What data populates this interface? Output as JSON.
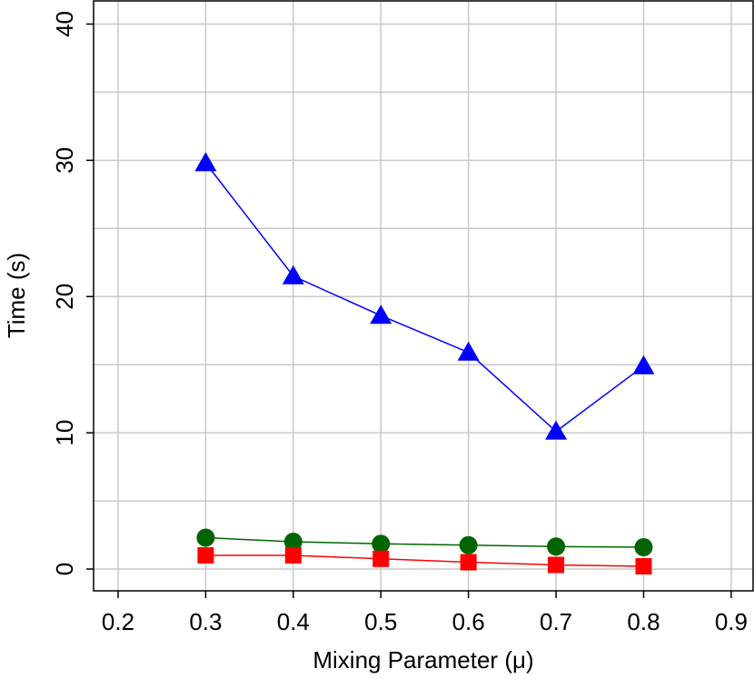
{
  "chart_data": {
    "type": "line",
    "x_label": "Mixing Parameter (μ)",
    "y_label": "Time (s)",
    "x": [
      0.3,
      0.4,
      0.5,
      0.6,
      0.7,
      0.8
    ],
    "series": [
      {
        "color": "#0000ff",
        "marker": "triangle",
        "values": [
          29.8,
          21.5,
          18.6,
          15.9,
          10.1,
          14.9
        ]
      },
      {
        "color": "#006400",
        "marker": "circle",
        "values": [
          2.3,
          2.0,
          1.85,
          1.75,
          1.65,
          1.6
        ]
      },
      {
        "color": "#ff0000",
        "marker": "square",
        "values": [
          1.0,
          1.0,
          0.75,
          0.5,
          0.3,
          0.2
        ]
      }
    ],
    "xlim": [
      0.172,
      0.925
    ],
    "ylim": [
      -1.6,
      41.7
    ],
    "xticks": [
      0.2,
      0.3,
      0.4,
      0.5,
      0.6,
      0.7,
      0.8,
      0.9
    ],
    "yticks": [
      0,
      10,
      20,
      30,
      40
    ],
    "minor_yticks": [
      5,
      15,
      25,
      35
    ],
    "grid": true
  }
}
